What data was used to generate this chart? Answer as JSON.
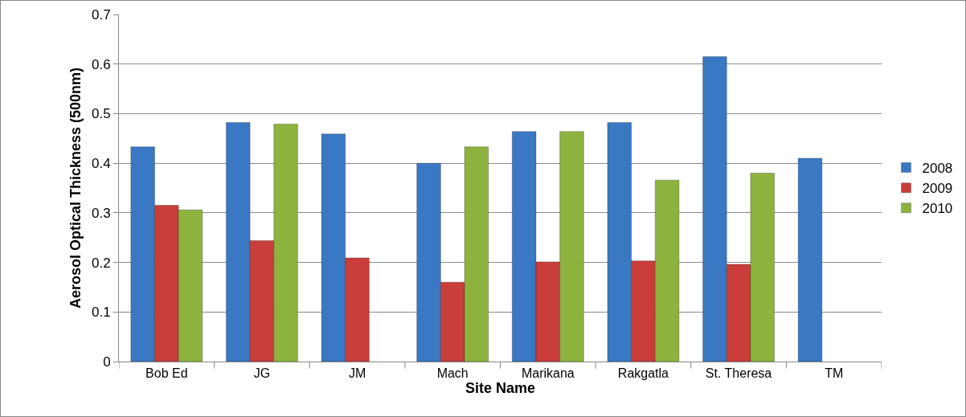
{
  "chart_data": {
    "type": "bar",
    "xlabel": "Site Name",
    "ylabel": "Aerosol Optical Thickness (500nm)",
    "categories": [
      "Bob Ed",
      "JG",
      "JM",
      "Mach",
      "Marikana",
      "Rakgatla",
      "St. Theresa",
      "TM"
    ],
    "series": [
      {
        "name": "2008",
        "color": "#3a78c4",
        "values": [
          0.433,
          0.482,
          0.459,
          0.4,
          0.464,
          0.482,
          0.615,
          0.41
        ]
      },
      {
        "name": "2009",
        "color": "#c93d3a",
        "values": [
          0.315,
          0.244,
          0.209,
          0.16,
          0.201,
          0.203,
          0.196,
          null
        ]
      },
      {
        "name": "2010",
        "color": "#8db33e",
        "values": [
          0.306,
          0.479,
          null,
          0.433,
          0.464,
          0.366,
          0.38,
          null
        ]
      }
    ],
    "ylim": [
      0,
      0.7
    ],
    "yticks": [
      0,
      0.1,
      0.2,
      0.3,
      0.4,
      0.5,
      0.6,
      0.7
    ],
    "grid": "y",
    "legend": "right"
  }
}
